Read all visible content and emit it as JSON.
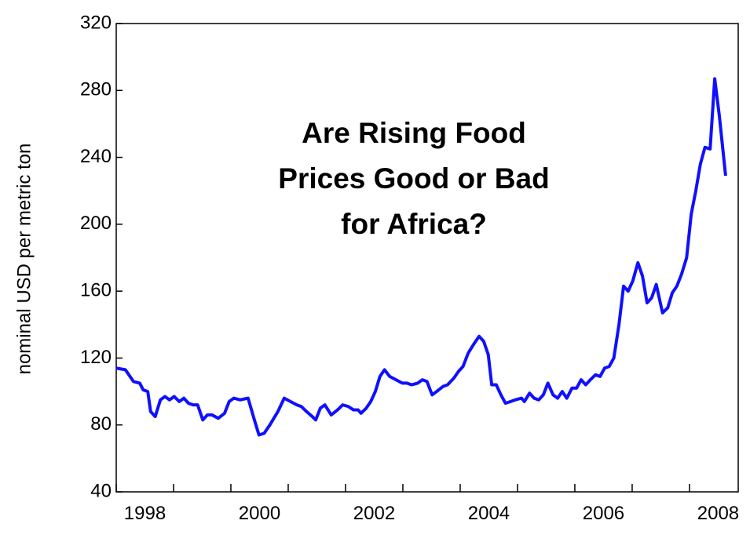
{
  "chart_data": {
    "type": "line",
    "title": [
      "Are Rising Food",
      "Prices Good or Bad",
      "for Africa?"
    ],
    "ylabel": "nominal USD per metric ton",
    "x": [
      1998.0,
      1998.16,
      1998.3,
      1998.41,
      1998.47,
      1998.55,
      1998.6,
      1998.68,
      1998.77,
      1998.85,
      1998.93,
      1999.01,
      1999.1,
      1999.18,
      1999.26,
      1999.34,
      1999.42,
      1999.51,
      1999.59,
      1999.67,
      1999.78,
      1999.89,
      1999.97,
      2000.05,
      2000.16,
      2000.3,
      2000.41,
      2000.49,
      2000.58,
      2000.68,
      2000.82,
      2000.93,
      2001.04,
      2001.15,
      2001.23,
      2001.32,
      2001.42,
      2001.48,
      2001.56,
      2001.64,
      2001.75,
      2001.86,
      2001.95,
      2002.05,
      2002.14,
      2002.22,
      2002.27,
      2002.36,
      2002.44,
      2002.52,
      2002.6,
      2002.68,
      2002.77,
      2002.88,
      2002.99,
      2003.07,
      2003.15,
      2003.26,
      2003.34,
      2003.42,
      2003.51,
      2003.59,
      2003.7,
      2003.78,
      2003.89,
      2003.97,
      2004.05,
      2004.14,
      2004.25,
      2004.33,
      2004.41,
      2004.49,
      2004.55,
      2004.63,
      2004.71,
      2004.79,
      2004.88,
      2004.96,
      2005.07,
      2005.12,
      2005.21,
      2005.29,
      2005.37,
      2005.45,
      2005.53,
      2005.62,
      2005.7,
      2005.78,
      2005.86,
      2005.95,
      2006.03,
      2006.11,
      2006.19,
      2006.27,
      2006.36,
      2006.44,
      2006.52,
      2006.6,
      2006.68,
      2006.77,
      2006.85,
      2006.93,
      2007.01,
      2007.1,
      2007.18,
      2007.26,
      2007.34,
      2007.42,
      2007.53,
      2007.62,
      2007.7,
      2007.78,
      2007.86,
      2007.95,
      2008.03,
      2008.11,
      2008.19,
      2008.27,
      2008.36,
      2008.44,
      2008.52,
      2008.63
    ],
    "series": [
      {
        "color": "#1010ff",
        "values": [
          114,
          113,
          106,
          105,
          101,
          100,
          88,
          85,
          95,
          97,
          95,
          97,
          94,
          96,
          93,
          92,
          92,
          83,
          86,
          86,
          84,
          87,
          94,
          96,
          95,
          96,
          83,
          74,
          75,
          80,
          88,
          96,
          94,
          92,
          91,
          88,
          85,
          83,
          90,
          92,
          86,
          89,
          92,
          91,
          89,
          89,
          87,
          90,
          94,
          100,
          109,
          113,
          109,
          107,
          105,
          105,
          104,
          105,
          107,
          106,
          98,
          100,
          103,
          104,
          108,
          112,
          115,
          123,
          129,
          133,
          130,
          122,
          104,
          104,
          98,
          93,
          94,
          95,
          96,
          94,
          99,
          96,
          95,
          98,
          105,
          98,
          96,
          100,
          96,
          102,
          102,
          107,
          104,
          107,
          110,
          109,
          114,
          115,
          120,
          140,
          163,
          160,
          166,
          177,
          169,
          153,
          156,
          164,
          147,
          150,
          159,
          163,
          170,
          180,
          206,
          220,
          236,
          246,
          245,
          287,
          265,
          229
        ]
      }
    ],
    "xlim": [
      1998,
      2008.85
    ],
    "ylim": [
      40,
      320
    ],
    "xticks": [
      1998,
      2000,
      2002,
      2004,
      2006,
      2008
    ],
    "xminor": [
      1999,
      2001,
      2003,
      2005,
      2007
    ],
    "yticks": [
      40,
      80,
      120,
      160,
      200,
      240,
      280,
      320
    ]
  }
}
